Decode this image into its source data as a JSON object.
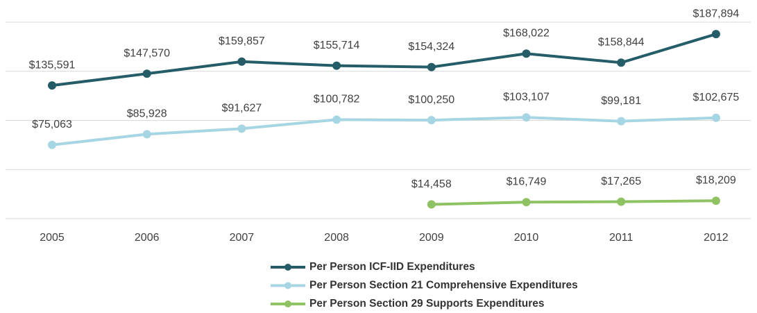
{
  "chart_data": {
    "type": "line",
    "categories": [
      "2005",
      "2006",
      "2007",
      "2008",
      "2009",
      "2010",
      "2011",
      "2012"
    ],
    "series": [
      {
        "name": "Per Person ICF-IID Expenditures",
        "color": "#245c68",
        "values": [
          135591,
          147570,
          159857,
          155714,
          154324,
          168022,
          158844,
          187894
        ],
        "value_labels": [
          "$135,591",
          "$147,570",
          "$159,857",
          "$155,714",
          "$154,324",
          "$168,022",
          "$158,844",
          "$187,894"
        ]
      },
      {
        "name": "Per Person Section 21 Comprehensive Expenditures",
        "color": "#a6d5e3",
        "values": [
          75063,
          85928,
          91627,
          100782,
          100250,
          103107,
          99181,
          102675
        ],
        "value_labels": [
          "$75,063",
          "$85,928",
          "$91,627",
          "$100,782",
          "$100,250",
          "$103,107",
          "$99,181",
          "$102,675"
        ]
      },
      {
        "name": "Per Person Section 29 Supports Expenditures",
        "color": "#8fc262",
        "values": [
          null,
          null,
          null,
          null,
          14458,
          16749,
          17265,
          18209
        ],
        "value_labels": [
          null,
          null,
          null,
          null,
          "$14,458",
          "$16,749",
          "$17,265",
          "$18,209"
        ]
      }
    ],
    "ylim": [
      0,
      200000
    ],
    "yticks": [
      0,
      50000,
      100000,
      150000,
      200000
    ],
    "grid": true
  }
}
